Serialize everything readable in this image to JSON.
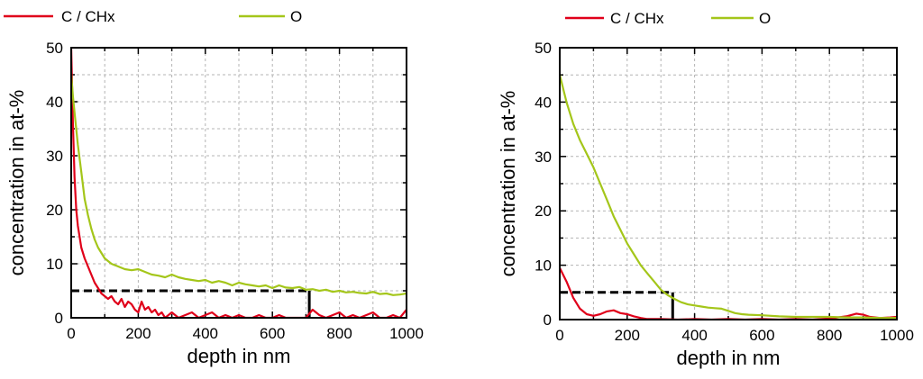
{
  "chart_data": [
    {
      "type": "line",
      "xlabel": "depth in nm",
      "ylabel": "concentration in at-%",
      "xlim": [
        0,
        1000
      ],
      "ylim": [
        0,
        50
      ],
      "xticks": [
        "0",
        "200",
        "400",
        "600",
        "800",
        "1000"
      ],
      "yticks": [
        "0",
        "10",
        "20",
        "30",
        "40",
        "50"
      ],
      "grid": true,
      "legend": "top",
      "series": [
        {
          "name": "C / CHx",
          "color": "#e0001a",
          "x": [
            0,
            5,
            10,
            15,
            20,
            25,
            30,
            40,
            50,
            60,
            70,
            80,
            90,
            100,
            110,
            120,
            130,
            140,
            150,
            160,
            170,
            180,
            190,
            200,
            210,
            220,
            230,
            240,
            250,
            260,
            270,
            280,
            290,
            300,
            320,
            340,
            360,
            380,
            400,
            420,
            440,
            460,
            480,
            500,
            520,
            540,
            560,
            580,
            600,
            620,
            640,
            660,
            680,
            700,
            720,
            740,
            760,
            780,
            800,
            820,
            840,
            860,
            880,
            900,
            920,
            940,
            960,
            980,
            1000
          ],
          "y": [
            50,
            36,
            26,
            20,
            17,
            15,
            13,
            11,
            9.5,
            8,
            6.5,
            5.5,
            4.5,
            4,
            3.5,
            4,
            3,
            2.5,
            3.5,
            2,
            3,
            2.5,
            1.5,
            1,
            3,
            1.5,
            2,
            1,
            1.5,
            0.5,
            1,
            0,
            0.5,
            1,
            0,
            0.5,
            1,
            0,
            0.5,
            1,
            0,
            0.5,
            0,
            0.5,
            0,
            0,
            0.5,
            0,
            0,
            0.5,
            0,
            0,
            0,
            0,
            1.5,
            0.5,
            0,
            0.5,
            1,
            0,
            0.5,
            0,
            0.5,
            1,
            0,
            0,
            0.5,
            0,
            1.5
          ]
        },
        {
          "name": "O",
          "color": "#a4c61a",
          "x": [
            0,
            5,
            10,
            20,
            30,
            40,
            50,
            60,
            70,
            80,
            90,
            100,
            120,
            140,
            160,
            180,
            200,
            220,
            240,
            260,
            280,
            300,
            320,
            340,
            360,
            380,
            400,
            420,
            440,
            460,
            480,
            500,
            520,
            540,
            560,
            580,
            600,
            620,
            640,
            660,
            680,
            700,
            720,
            740,
            760,
            780,
            800,
            820,
            840,
            860,
            880,
            900,
            920,
            940,
            960,
            980,
            1000
          ],
          "y": [
            45,
            41,
            38,
            32,
            27,
            22,
            19,
            16.5,
            14.5,
            13,
            12,
            11,
            10,
            9.5,
            9,
            8.8,
            9,
            8.5,
            8,
            7.8,
            7.5,
            8,
            7.5,
            7.2,
            7,
            6.8,
            7,
            6.5,
            6.8,
            6.5,
            6,
            6.5,
            6.2,
            6,
            5.8,
            6,
            5.5,
            6,
            5.6,
            5.5,
            5.7,
            5.2,
            5.3,
            5.0,
            5.2,
            4.8,
            5.0,
            4.7,
            4.8,
            4.6,
            4.5,
            4.8,
            4.4,
            4.5,
            4.2,
            4.3,
            4.5
          ]
        }
      ],
      "annotations": [
        {
          "kind": "dashed-line",
          "from": [
            0,
            5
          ],
          "to": [
            710,
            5
          ]
        },
        {
          "kind": "solid-line",
          "from": [
            710,
            0
          ],
          "to": [
            710,
            5
          ]
        }
      ]
    },
    {
      "type": "line",
      "xlabel": "depth in nm",
      "ylabel": "concentration in at-%",
      "xlim": [
        0,
        1000
      ],
      "ylim": [
        0,
        50
      ],
      "xticks": [
        "0",
        "200",
        "400",
        "600",
        "800",
        "1000"
      ],
      "yticks": [
        "0",
        "10",
        "20",
        "30",
        "40",
        "50"
      ],
      "grid": true,
      "legend": "top",
      "series": [
        {
          "name": "C / CHx",
          "color": "#e0001a",
          "x": [
            0,
            20,
            40,
            60,
            80,
            100,
            120,
            140,
            160,
            180,
            200,
            220,
            240,
            260,
            300,
            350,
            400,
            450,
            500,
            550,
            600,
            650,
            700,
            750,
            800,
            850,
            880,
            900,
            920,
            950,
            980,
            1000
          ],
          "y": [
            9.5,
            7,
            4,
            2,
            1,
            0.7,
            1,
            1.5,
            1.7,
            1.2,
            1,
            0.6,
            0.3,
            0.1,
            0.1,
            0,
            0.1,
            0,
            0.1,
            0,
            0.1,
            0,
            0.1,
            0,
            0.2,
            0.6,
            1.1,
            0.9,
            0.5,
            0.3,
            0.4,
            0.5
          ]
        },
        {
          "name": "O",
          "color": "#a4c61a",
          "x": [
            0,
            20,
            40,
            60,
            80,
            100,
            120,
            140,
            160,
            180,
            200,
            220,
            240,
            260,
            280,
            300,
            320,
            340,
            360,
            380,
            400,
            420,
            440,
            460,
            480,
            500,
            520,
            540,
            560,
            600,
            650,
            700,
            750,
            800,
            850,
            900,
            950,
            1000
          ],
          "y": [
            45,
            40,
            36,
            33,
            30.5,
            28,
            25,
            22,
            19,
            16.5,
            14,
            12,
            10,
            8.5,
            7,
            5.5,
            4.5,
            3.8,
            3.2,
            2.8,
            2.6,
            2.4,
            2.2,
            2.1,
            2,
            1.6,
            1.2,
            1,
            0.9,
            0.8,
            0.6,
            0.5,
            0.5,
            0.5,
            0.4,
            0.4,
            0.3,
            0.3
          ]
        }
      ],
      "annotations": [
        {
          "kind": "dashed-line",
          "from": [
            0,
            5
          ],
          "to": [
            335,
            5
          ]
        },
        {
          "kind": "solid-line",
          "from": [
            335,
            0
          ],
          "to": [
            335,
            5
          ]
        }
      ]
    }
  ]
}
